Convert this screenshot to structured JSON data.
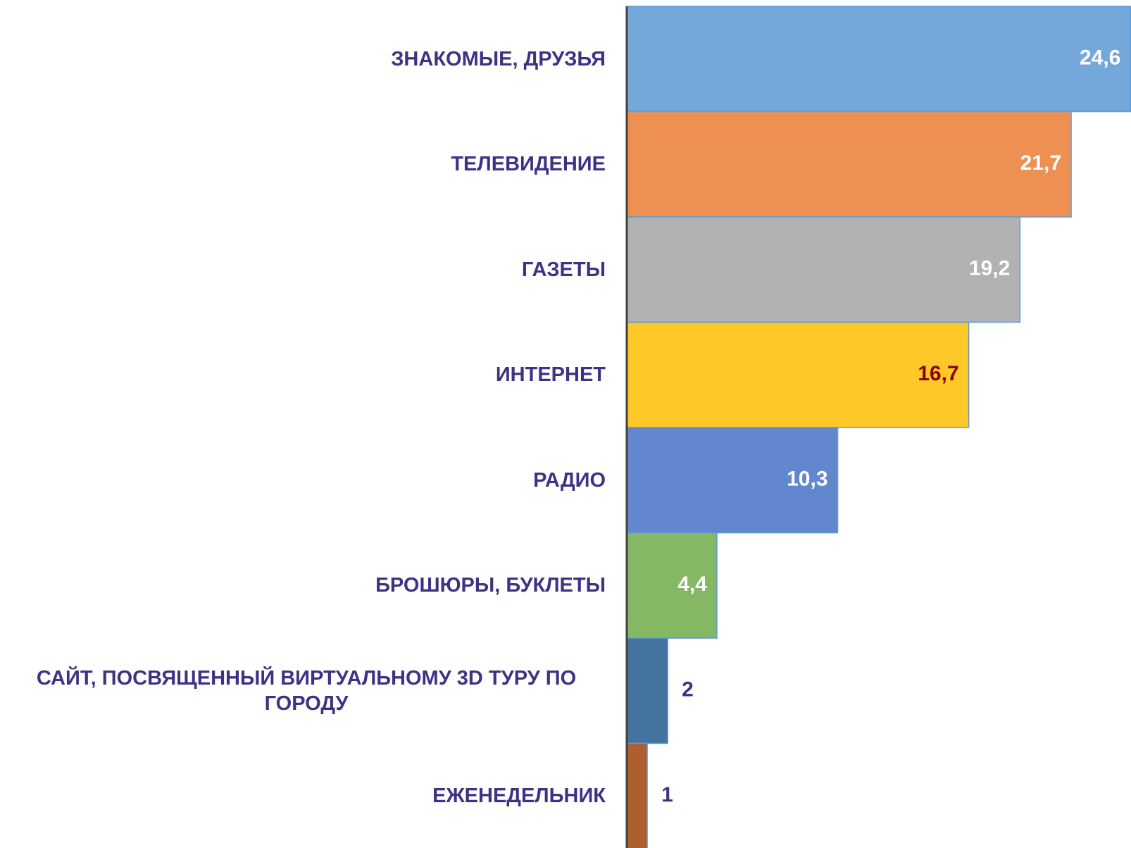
{
  "chart_data": {
    "type": "bar",
    "orientation": "horizontal",
    "categories": [
      "ЗНАКОМЫЕ, ДРУЗЬЯ",
      "ТЕЛЕВИДЕНИЕ",
      "ГАЗЕТЫ",
      "ИНТЕРНЕТ",
      "РАДИО",
      "БРОШЮРЫ, БУКЛЕТЫ",
      "САЙТ, ПОСВЯЩЕННЫЙ ВИРТУАЛЬНОМУ 3D ТУРУ ПО ГОРОДУ",
      "ЕЖЕНЕДЕЛЬНИК"
    ],
    "values": [
      24.6,
      21.7,
      19.2,
      16.7,
      10.3,
      4.4,
      2,
      1
    ],
    "value_labels": [
      "24,6",
      "21,7",
      "19,2",
      "16,7",
      "10,3",
      "4,4",
      "2",
      "1"
    ],
    "colors": [
      "#75a8da",
      "#ee9052",
      "#b2b2b2",
      "#fdc828",
      "#6287cf",
      "#84b863",
      "#44739f",
      "#ad5f30"
    ],
    "label_colors": [
      "#ffffff",
      "#ffffff",
      "#ffffff",
      "#8b0000",
      "#ffffff",
      "#ffffff",
      "#3e3285",
      "#3e3285"
    ],
    "category_color": "#3e3285",
    "xlim": [
      0,
      25
    ]
  }
}
